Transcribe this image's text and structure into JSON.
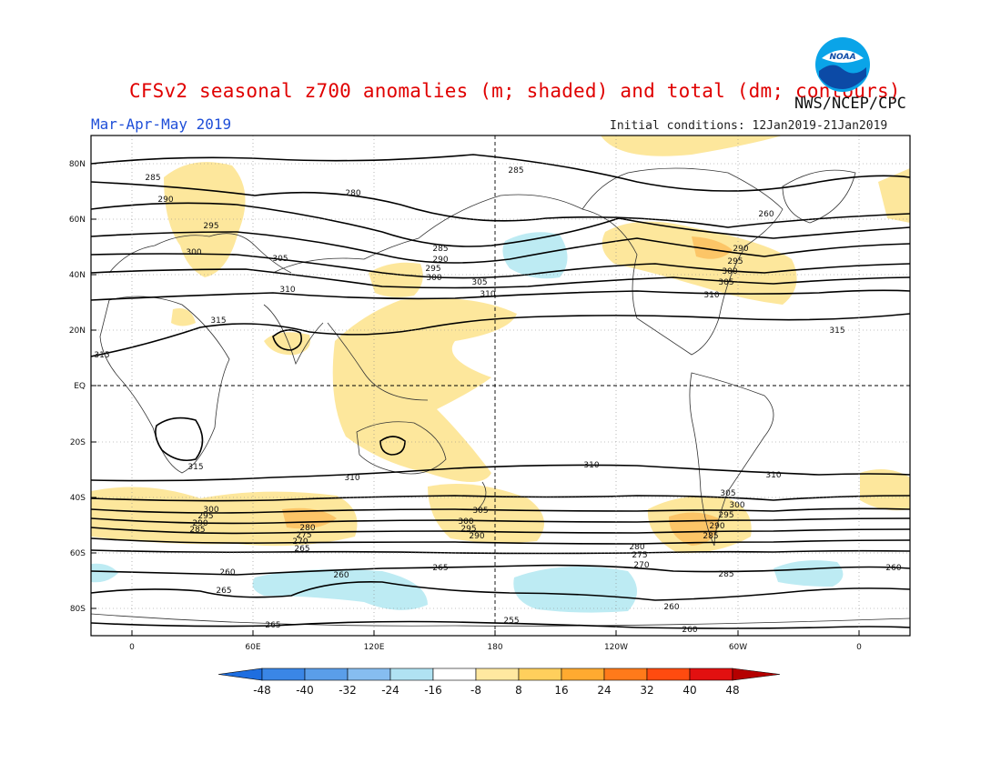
{
  "header": {
    "title": "CFSv2 seasonal z700 anomalies (m; shaded) and total (dm; contours)",
    "agency": "NWS/NCEP/CPC",
    "season": "Mar-Apr-May 2019",
    "initial_conditions": "Initial conditions: 12Jan2019-21Jan2019"
  },
  "logo": {
    "icon": "noaa-logo",
    "text": "NOAA"
  },
  "map": {
    "lat_ticks": [
      "80N",
      "60N",
      "40N",
      "20N",
      "EQ",
      "20S",
      "40S",
      "60S",
      "80S"
    ],
    "lon_ticks": [
      "0",
      "60E",
      "120E",
      "180",
      "120W",
      "60W",
      "0"
    ],
    "contour_labels": [
      "285",
      "280",
      "290",
      "295",
      "300",
      "305",
      "310",
      "315",
      "315",
      "285",
      "290",
      "295",
      "300",
      "305",
      "310",
      "285",
      "290",
      "295",
      "300",
      "305",
      "310",
      "315",
      "310",
      "310",
      "310",
      "315",
      "300",
      "295",
      "290",
      "285",
      "280",
      "275",
      "270",
      "265",
      "260",
      "260",
      "265",
      "265",
      "305",
      "300",
      "295",
      "290",
      "285",
      "280",
      "275",
      "270",
      "260",
      "255",
      "305",
      "300",
      "295",
      "290",
      "285",
      "265",
      "260",
      "260",
      "260"
    ]
  },
  "colorbar": {
    "labels": [
      "-48",
      "-40",
      "-32",
      "-24",
      "-16",
      "-8",
      "8",
      "16",
      "24",
      "32",
      "40",
      "48"
    ],
    "colors": [
      "#1e6ee0",
      "#3a86e6",
      "#5a9ee9",
      "#86bdf0",
      "#b0e2f2",
      "#ffffff",
      "#ffe8a0",
      "#ffcf5c",
      "#ffaa30",
      "#ff7a1a",
      "#ff4b0f",
      "#e21010",
      "#b50000"
    ]
  },
  "colors": {
    "anomaly_pos_weak": "#fde79c",
    "anomaly_pos_mid": "#fcc567",
    "anomaly_neg_weak": "#bdebf3"
  }
}
